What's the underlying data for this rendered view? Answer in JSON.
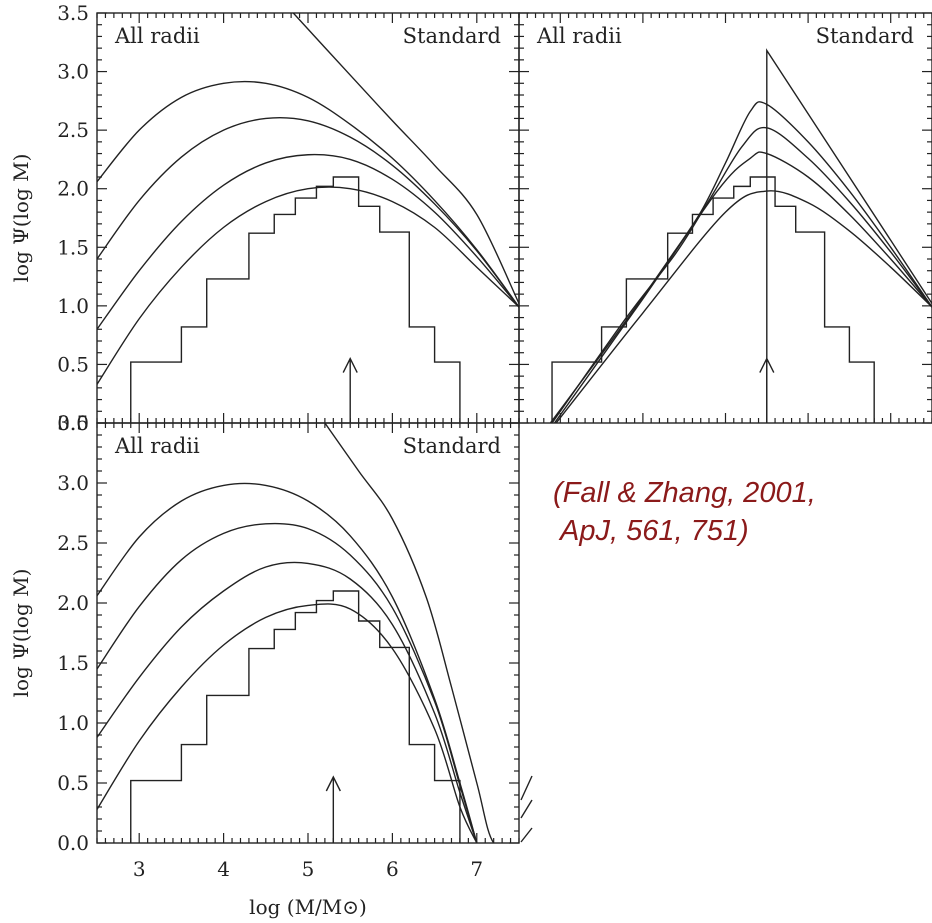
{
  "citation": {
    "line1": "(Fall & Zhang, 2001,",
    "line2": " ApJ, 561, 751)"
  },
  "chart_data": [
    {
      "type": "line",
      "panel": "top-left",
      "label_left": "All radii",
      "label_right": "Standard",
      "ylabel": "log Ψ(log M)",
      "xlim": [
        2.5,
        7.5
      ],
      "ylim": [
        0.0,
        3.5
      ],
      "yticks": [
        "0.0",
        "0.5",
        "1.0",
        "1.5",
        "2.0",
        "2.5",
        "3.0",
        "3.5"
      ],
      "histogram": {
        "edges": [
          2.9,
          3.5,
          3.8,
          4.3,
          4.6,
          4.85,
          5.1,
          5.3,
          5.6,
          5.85,
          6.2,
          6.5,
          6.8
        ],
        "values": [
          0.52,
          0.82,
          1.23,
          1.62,
          1.78,
          1.92,
          2.02,
          2.1,
          1.85,
          1.63,
          0.82,
          0.52
        ]
      },
      "series": [
        {
          "x": [
            2.5,
            3.0,
            3.5,
            4.0,
            4.5,
            5.0,
            5.5,
            6.0,
            6.5,
            7.0,
            7.5
          ],
          "y": [
            0.33,
            0.89,
            1.33,
            1.67,
            1.89,
            2.0,
            2.0,
            1.89,
            1.67,
            1.33,
            0.99
          ]
        },
        {
          "x": [
            2.5,
            3.0,
            3.5,
            4.0,
            4.5,
            5.0,
            5.5,
            6.0,
            6.5,
            7.0,
            7.5
          ],
          "y": [
            0.8,
            1.3,
            1.72,
            2.03,
            2.22,
            2.29,
            2.25,
            2.08,
            1.8,
            1.42,
            0.99
          ]
        },
        {
          "x": [
            2.5,
            3.0,
            3.5,
            4.0,
            4.5,
            5.0,
            5.5,
            6.0,
            6.5,
            7.0,
            7.5
          ],
          "y": [
            1.4,
            1.9,
            2.27,
            2.5,
            2.6,
            2.58,
            2.44,
            2.2,
            1.87,
            1.47,
            0.99
          ]
        },
        {
          "x": [
            2.5,
            3.0,
            3.5,
            4.0,
            4.5,
            5.0,
            5.5,
            6.0,
            6.5,
            7.0,
            7.5
          ],
          "y": [
            2.06,
            2.5,
            2.78,
            2.9,
            2.9,
            2.78,
            2.55,
            2.26,
            1.9,
            1.48,
            0.99
          ]
        },
        {
          "x": [
            4.8,
            5.5,
            6.0,
            6.5,
            7.0,
            7.5
          ],
          "y": [
            3.52,
            2.97,
            2.58,
            2.2,
            1.78,
            1.02
          ]
        }
      ],
      "arrow_x": 5.5
    },
    {
      "type": "line",
      "panel": "top-right",
      "label_left": "All radii",
      "label_right": "Standard",
      "xlim": [
        2.5,
        7.5
      ],
      "ylim": [
        0.0,
        3.5
      ],
      "histogram": {
        "edges": [
          2.9,
          3.5,
          3.8,
          4.3,
          4.6,
          4.85,
          5.1,
          5.3,
          5.6,
          5.85,
          6.2,
          6.5,
          6.8
        ],
        "values": [
          0.52,
          0.82,
          1.23,
          1.62,
          1.78,
          1.92,
          2.02,
          2.1,
          1.85,
          1.63,
          0.82,
          0.52
        ]
      },
      "series": [
        {
          "x": [
            2.95,
            4.0,
            5.0,
            5.5,
            6.0,
            6.5,
            7.0,
            7.5
          ],
          "y": [
            0.0,
            0.94,
            1.8,
            1.98,
            1.88,
            1.64,
            1.33,
            0.99
          ]
        },
        {
          "x": [
            2.93,
            4.0,
            4.9,
            5.3,
            5.5,
            6.0,
            6.5,
            7.0,
            7.5
          ],
          "y": [
            0.0,
            1.06,
            1.98,
            2.26,
            2.3,
            2.1,
            1.78,
            1.4,
            0.99
          ]
        },
        {
          "x": [
            2.9,
            3.8,
            4.4,
            4.8,
            5.2,
            5.5,
            6.0,
            6.5,
            7.0,
            7.5
          ],
          "y": [
            0.0,
            0.9,
            1.45,
            1.9,
            2.36,
            2.52,
            2.26,
            1.89,
            1.46,
            0.99
          ]
        },
        {
          "x": [
            2.88,
            3.7,
            4.3,
            4.7,
            5.0,
            5.3,
            5.5,
            6.0,
            6.5,
            7.0,
            7.5
          ],
          "y": [
            0.0,
            0.78,
            1.38,
            1.8,
            2.22,
            2.66,
            2.72,
            2.4,
            1.98,
            1.5,
            0.99
          ]
        },
        {
          "x": [
            5.5,
            5.5,
            7.5
          ],
          "y": [
            0.0,
            3.18,
            1.02
          ]
        }
      ],
      "arrow_x": 5.5
    },
    {
      "type": "line",
      "panel": "bottom-left",
      "label_left": "All radii",
      "label_right": "Standard",
      "ylabel": "log Ψ(log M)",
      "xlabel": "log (M/M⊙)",
      "xlim": [
        2.5,
        7.5
      ],
      "ylim": [
        0.0,
        3.5
      ],
      "xticks": [
        "3",
        "4",
        "5",
        "6",
        "7"
      ],
      "yticks": [
        "0.0",
        "0.5",
        "1.0",
        "1.5",
        "2.0",
        "2.5",
        "3.0",
        "3.5"
      ],
      "histogram": {
        "edges": [
          2.9,
          3.5,
          3.8,
          4.3,
          4.6,
          4.85,
          5.1,
          5.3,
          5.6,
          5.85,
          6.2,
          6.5,
          6.8
        ],
        "values": [
          0.52,
          0.82,
          1.23,
          1.62,
          1.78,
          1.92,
          2.02,
          2.1,
          1.85,
          1.63,
          0.82,
          0.52
        ]
      },
      "series": [
        {
          "x": [
            2.5,
            3.0,
            3.5,
            4.0,
            4.5,
            5.0,
            5.5,
            6.0,
            6.5,
            6.8,
            7.0
          ],
          "y": [
            0.28,
            0.85,
            1.3,
            1.65,
            1.88,
            1.98,
            1.95,
            1.62,
            0.95,
            0.3,
            0.0
          ]
        },
        {
          "x": [
            2.5,
            3.0,
            3.5,
            4.0,
            4.5,
            5.0,
            5.5,
            6.0,
            6.5,
            6.8,
            7.0
          ],
          "y": [
            0.88,
            1.38,
            1.8,
            2.1,
            2.3,
            2.33,
            2.2,
            1.82,
            1.08,
            0.42,
            0.0
          ]
        },
        {
          "x": [
            2.5,
            3.0,
            3.5,
            4.0,
            4.5,
            5.0,
            5.5,
            6.0,
            6.5,
            6.8,
            7.0
          ],
          "y": [
            1.45,
            1.97,
            2.36,
            2.58,
            2.66,
            2.62,
            2.4,
            1.96,
            1.18,
            0.48,
            0.0
          ]
        },
        {
          "x": [
            2.5,
            3.0,
            3.5,
            4.0,
            4.5,
            5.0,
            5.5,
            6.0,
            6.5,
            6.8,
            7.0
          ],
          "y": [
            2.06,
            2.55,
            2.85,
            2.98,
            2.98,
            2.85,
            2.56,
            2.05,
            1.2,
            0.5,
            0.0
          ]
        },
        {
          "x": [
            5.2,
            5.6,
            6.0,
            6.4,
            6.7,
            7.0,
            7.2,
            7.5
          ],
          "y": [
            3.5,
            3.1,
            2.7,
            2.05,
            1.3,
            0.5,
            0.0,
            0.0
          ]
        }
      ],
      "arrow_x": 5.3
    }
  ]
}
